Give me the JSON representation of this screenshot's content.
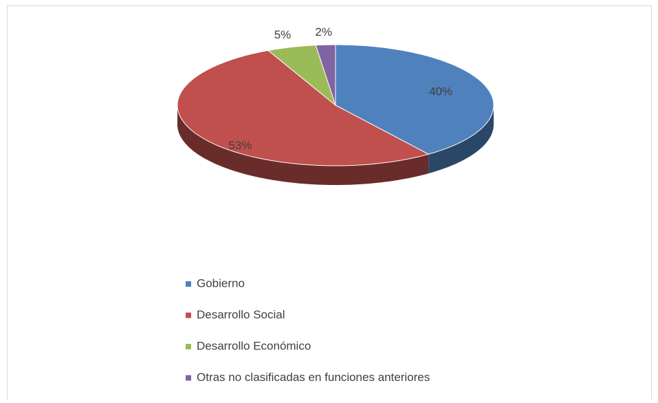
{
  "chart_data": {
    "type": "pie3d",
    "categories": [
      "Gobierno",
      "Desarrollo Social",
      "Desarrollo Económico",
      "Otras no clasificadas en funciones anteriores"
    ],
    "values": [
      40,
      53,
      5,
      2
    ],
    "value_labels": [
      "40%",
      "53%",
      "5%",
      "2%"
    ],
    "colors": [
      "#4f81bd",
      "#c0504d",
      "#9bbb59",
      "#8064a2"
    ],
    "legend": "bottom"
  }
}
